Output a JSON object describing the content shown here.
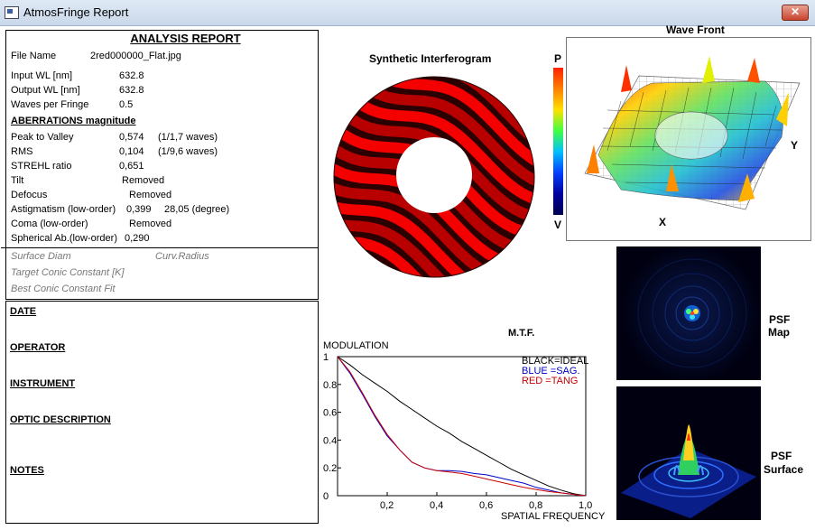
{
  "window": {
    "title": "AtmosFringe  Report",
    "close_label": "✕"
  },
  "report": {
    "heading": "ANALYSIS  REPORT",
    "file_name_label": "File Name",
    "file_name_value": "2red000000_Flat.jpg",
    "input_wl_label": "Input  WL [nm]",
    "input_wl_value": "632.8",
    "output_wl_label": "Output WL [nm]",
    "output_wl_value": "632.8",
    "waves_per_fringe_label": "Waves per Fringe",
    "waves_per_fringe_value": "0.5",
    "aberrations_heading": "ABERRATIONS magnitude",
    "rows": [
      {
        "label": "Peak to Valley",
        "value": "0,574",
        "extra": "(1/1,7 waves)"
      },
      {
        "label": "RMS",
        "value": "0,104",
        "extra": "(1/9,6 waves)"
      },
      {
        "label": "STREHL ratio",
        "value": "0,651",
        "extra": ""
      },
      {
        "label": "Tilt",
        "value": "Removed",
        "extra": ""
      },
      {
        "label": "Defocus",
        "value": "Removed",
        "extra": ""
      },
      {
        "label": "Astigmatism  (low-order)",
        "value": "0,399",
        "extra": "28,05  (degree)"
      },
      {
        "label": "Coma          (low-order)",
        "value": "Removed",
        "extra": ""
      },
      {
        "label": "Spherical Ab.(low-order)",
        "value": "0,290",
        "extra": ""
      }
    ],
    "surface_diam": "Surface Diam",
    "curv_radius": "Curv.Radius",
    "target_conic": "Target Conic Constant [K]",
    "best_conic": "Best Conic Constant Fit"
  },
  "notes": {
    "date": "DATE",
    "operator": "OPERATOR",
    "instrument": "INSTRUMENT",
    "optic_description": "OPTIC DESCRIPTION",
    "notes": "NOTES"
  },
  "interferogram": {
    "title": "Synthetic Interferogram"
  },
  "wavefront": {
    "title": "Wave Front",
    "scale_top": "P",
    "scale_bottom": "V",
    "axis_x": "X",
    "axis_y": "Y"
  },
  "psf": {
    "map_label_1": "PSF",
    "map_label_2": "Map",
    "surface_label_1": "PSF",
    "surface_label_2": "Surface"
  },
  "mtf": {
    "title": "M.T.F.",
    "ylabel": "MODULATION",
    "xlabel": "SPATIAL FREQUENCY",
    "legend": [
      {
        "text": "BLACK=IDEAL",
        "color": "#000000"
      },
      {
        "text": "BLUE  =SAG.",
        "color": "#0000cc"
      },
      {
        "text": "RED   =TANG",
        "color": "#cc0000"
      }
    ]
  },
  "chart_data": {
    "type": "line",
    "title": "M.T.F.",
    "xlabel": "SPATIAL FREQUENCY",
    "ylabel": "MODULATION",
    "xlim": [
      0,
      1
    ],
    "ylim": [
      0,
      1
    ],
    "xticks": [
      "0,2",
      "0,4",
      "0,6",
      "0,8",
      "1,0"
    ],
    "yticks": [
      "0",
      "0.2",
      "0.4",
      "0.6",
      "0.8",
      "1"
    ],
    "x": [
      0,
      0.05,
      0.1,
      0.15,
      0.2,
      0.25,
      0.3,
      0.35,
      0.4,
      0.45,
      0.5,
      0.55,
      0.6,
      0.65,
      0.7,
      0.75,
      0.8,
      0.85,
      0.9,
      0.95,
      1.0
    ],
    "series": [
      {
        "name": "BLACK=IDEAL",
        "color": "#000000",
        "values": [
          1,
          0.94,
          0.87,
          0.81,
          0.75,
          0.68,
          0.62,
          0.56,
          0.5,
          0.45,
          0.39,
          0.34,
          0.29,
          0.24,
          0.19,
          0.15,
          0.11,
          0.07,
          0.04,
          0.015,
          0
        ]
      },
      {
        "name": "BLUE  =SAG.",
        "color": "#0000cc",
        "values": [
          1,
          0.88,
          0.73,
          0.57,
          0.43,
          0.33,
          0.24,
          0.2,
          0.18,
          0.18,
          0.175,
          0.16,
          0.15,
          0.13,
          0.11,
          0.09,
          0.06,
          0.04,
          0.02,
          0.01,
          0
        ]
      },
      {
        "name": "RED   =TANG",
        "color": "#cc0000",
        "values": [
          1,
          0.89,
          0.74,
          0.58,
          0.44,
          0.33,
          0.24,
          0.2,
          0.18,
          0.17,
          0.16,
          0.14,
          0.12,
          0.1,
          0.08,
          0.06,
          0.045,
          0.03,
          0.02,
          0.01,
          0
        ]
      }
    ]
  },
  "colors": {
    "fringe_red": "#ff0000",
    "fringe_dark": "#1a0000",
    "psf_bg": "#000018"
  }
}
